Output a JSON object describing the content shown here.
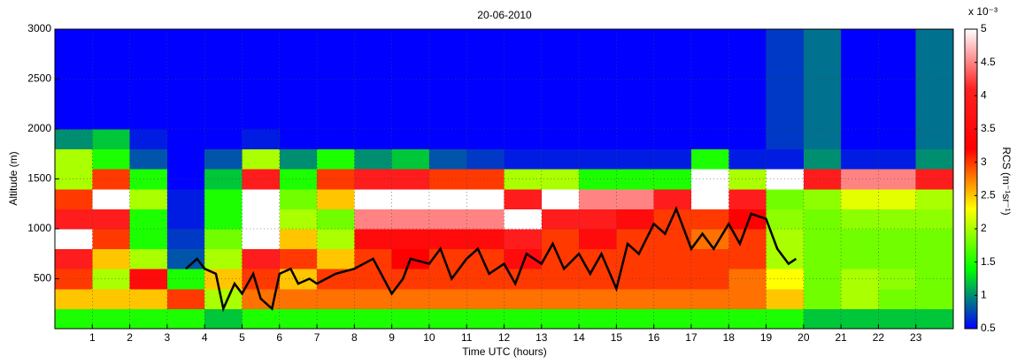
{
  "chart_data": {
    "type": "heatmap",
    "title": "20-06-2010",
    "x_label": "Time UTC (hours)",
    "y_label": "Altitude (m)",
    "colorbar_label": "RCS (m⁻¹sr⁻¹)",
    "colorbar_multiplier": "x 10⁻³",
    "xlim": [
      0,
      24
    ],
    "xticks": [
      1,
      2,
      3,
      4,
      5,
      6,
      7,
      8,
      9,
      10,
      11,
      12,
      13,
      14,
      15,
      16,
      17,
      18,
      19,
      20,
      21,
      22,
      23
    ],
    "ylim": [
      0,
      3000
    ],
    "yticks": [
      500,
      1000,
      1500,
      2000,
      2500,
      3000
    ],
    "clim": [
      0.5,
      5
    ],
    "cticks": [
      0.5,
      1,
      1.5,
      2,
      2.5,
      3,
      3.5,
      4,
      4.5,
      5
    ],
    "colormap": [
      "#0000ff",
      "#00ff00",
      "#ffff00",
      "#ff0000",
      "#ff2020",
      "#ffffff"
    ],
    "grid": true,
    "xbins": [
      0,
      1,
      2,
      3,
      4,
      5,
      6,
      7,
      8,
      9,
      10,
      11,
      12,
      13,
      14,
      15,
      16,
      17,
      18,
      19,
      20,
      21,
      22,
      23,
      24
    ],
    "ybins": [
      0,
      200,
      400,
      600,
      800,
      1000,
      1200,
      1400,
      1600,
      1800,
      2000,
      2200,
      2400,
      2600,
      2800,
      3000
    ],
    "z": [
      [
        1.5,
        1.5,
        1.5,
        1.5,
        1.2,
        1.5,
        1.5,
        1.5,
        1.5,
        1.5,
        1.5,
        1.5,
        1.5,
        1.5,
        1.5,
        1.5,
        1.5,
        1.5,
        1.5,
        1.5,
        1.2,
        1.2,
        1.2,
        1.2
      ],
      [
        2.5,
        2.5,
        2.5,
        3,
        2,
        2.8,
        2.8,
        2.8,
        2.8,
        2.8,
        2.8,
        2.8,
        2.8,
        2.8,
        2.8,
        2.8,
        2.8,
        2.8,
        2.8,
        2.5,
        1.8,
        2,
        1.8,
        1.8
      ],
      [
        3,
        2,
        3.5,
        1.5,
        2.5,
        3,
        2.5,
        3,
        3,
        3,
        3,
        3,
        3,
        3,
        3,
        3,
        3,
        3,
        2.8,
        2.3,
        1.8,
        2,
        1.9,
        1.8
      ],
      [
        4,
        2.5,
        2,
        0.8,
        2,
        4,
        3,
        2.5,
        3,
        3.2,
        3,
        3,
        3.5,
        3,
        3,
        3,
        3,
        3,
        3,
        2,
        1.8,
        1.8,
        1.8,
        1.8
      ],
      [
        5,
        3,
        1.5,
        0.7,
        1.8,
        5,
        2.5,
        2,
        3.5,
        3.5,
        3.5,
        3.5,
        4,
        3,
        3.5,
        3,
        3,
        2.8,
        3,
        2,
        1.8,
        1.8,
        1.8,
        1.8
      ],
      [
        4,
        4,
        1.5,
        0.6,
        1.5,
        5,
        2,
        1.8,
        4.5,
        4.5,
        4.5,
        4.5,
        5,
        4,
        4,
        3.5,
        3,
        3,
        3.2,
        1.9,
        1.8,
        1.9,
        1.9,
        1.9
      ],
      [
        3,
        5,
        2,
        0.6,
        1.5,
        5,
        1.8,
        2.5,
        5,
        5,
        5,
        5,
        4,
        5,
        4.5,
        4.5,
        4,
        5,
        4,
        1.8,
        1.9,
        2.2,
        2.2,
        2
      ],
      [
        2,
        3,
        1.5,
        0.5,
        1.2,
        4,
        1.5,
        3,
        4,
        4,
        3,
        3,
        2,
        2,
        1.5,
        1.5,
        1.5,
        5,
        2,
        5,
        4,
        4.5,
        4.5,
        4
      ],
      [
        2,
        1.5,
        0.8,
        0.5,
        0.8,
        2,
        1,
        1.5,
        1,
        1.2,
        0.8,
        0.7,
        0.6,
        0.6,
        0.6,
        0.6,
        0.6,
        1.5,
        0.6,
        0.6,
        1,
        0.6,
        0.6,
        1
      ],
      [
        1,
        1.2,
        0.6,
        0.5,
        0.5,
        0.6,
        0.5,
        0.5,
        0.5,
        0.5,
        0.5,
        0.5,
        0.5,
        0.5,
        0.5,
        0.5,
        0.5,
        0.5,
        0.5,
        0.7,
        0.9,
        0.5,
        0.5,
        0.9
      ],
      [
        0.5,
        0.5,
        0.5,
        0.5,
        0.5,
        0.5,
        0.5,
        0.5,
        0.5,
        0.5,
        0.5,
        0.5,
        0.5,
        0.5,
        0.5,
        0.5,
        0.5,
        0.5,
        0.5,
        0.7,
        0.9,
        0.5,
        0.5,
        0.9
      ],
      [
        0.5,
        0.5,
        0.5,
        0.5,
        0.5,
        0.5,
        0.5,
        0.5,
        0.5,
        0.5,
        0.5,
        0.5,
        0.5,
        0.5,
        0.5,
        0.5,
        0.5,
        0.5,
        0.5,
        0.7,
        0.9,
        0.5,
        0.5,
        0.9
      ],
      [
        0.5,
        0.5,
        0.5,
        0.5,
        0.5,
        0.5,
        0.5,
        0.5,
        0.5,
        0.5,
        0.5,
        0.5,
        0.5,
        0.5,
        0.5,
        0.5,
        0.5,
        0.5,
        0.5,
        0.7,
        0.9,
        0.5,
        0.5,
        0.9
      ],
      [
        0.5,
        0.5,
        0.5,
        0.5,
        0.5,
        0.5,
        0.5,
        0.5,
        0.5,
        0.5,
        0.5,
        0.5,
        0.5,
        0.5,
        0.5,
        0.5,
        0.5,
        0.5,
        0.5,
        0.7,
        0.9,
        0.5,
        0.5,
        0.9
      ],
      [
        0.5,
        0.5,
        0.5,
        0.5,
        0.5,
        0.5,
        0.5,
        0.5,
        0.5,
        0.5,
        0.5,
        0.5,
        0.5,
        0.5,
        0.5,
        0.5,
        0.5,
        0.5,
        0.5,
        0.7,
        0.9,
        0.5,
        0.5,
        0.9
      ]
    ],
    "line": {
      "color": "#000000",
      "x": [
        3.5,
        3.8,
        4.0,
        4.3,
        4.5,
        4.8,
        5.0,
        5.3,
        5.5,
        5.8,
        6.0,
        6.3,
        6.5,
        6.8,
        7.0,
        7.5,
        8.0,
        8.5,
        9.0,
        9.3,
        9.5,
        10.0,
        10.3,
        10.6,
        11.0,
        11.3,
        11.6,
        12.0,
        12.3,
        12.6,
        13.0,
        13.3,
        13.6,
        14.0,
        14.3,
        14.6,
        15.0,
        15.3,
        15.6,
        16.0,
        16.3,
        16.6,
        17.0,
        17.3,
        17.6,
        18.0,
        18.3,
        18.6,
        19.0,
        19.3,
        19.6,
        19.8
      ],
      "y": [
        600,
        700,
        600,
        550,
        200,
        450,
        350,
        550,
        300,
        200,
        550,
        600,
        450,
        500,
        450,
        550,
        600,
        700,
        350,
        500,
        700,
        650,
        800,
        500,
        700,
        800,
        550,
        650,
        450,
        750,
        650,
        850,
        600,
        750,
        550,
        750,
        400,
        850,
        750,
        1050,
        950,
        1200,
        800,
        950,
        800,
        1050,
        850,
        1150,
        1100,
        800,
        650,
        700
      ]
    }
  }
}
